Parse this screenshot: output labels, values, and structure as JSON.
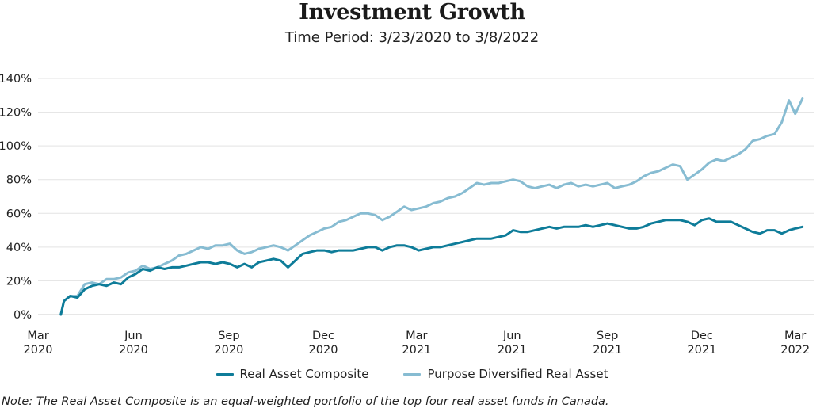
{
  "title": "Investment Growth",
  "subtitle": "Time Period: 3/23/2020 to 3/8/2022",
  "note": "Note: The Real Asset Composite is an equal-weighted portfolio of the top four real asset funds in Canada.",
  "colors": {
    "composite": "#0e7c99",
    "diversified": "#87bcd2",
    "grid": "#e3e3e3",
    "text": "#222222"
  },
  "chart_data": {
    "type": "line",
    "title": "Investment Growth",
    "subtitle": "Time Period: 3/23/2020 to 3/8/2022",
    "xlabel": "",
    "ylabel": "",
    "ylim": [
      0,
      140
    ],
    "yticks": [
      0,
      20,
      40,
      60,
      80,
      100,
      120,
      140
    ],
    "ytick_labels": [
      "0%",
      "20%",
      "40%",
      "60%",
      "80%",
      "100%",
      "120%",
      "140%"
    ],
    "xlim": [
      "2020-03-01",
      "2022-03-15"
    ],
    "xticks": [
      {
        "date": "2020-03-01",
        "month": "Mar",
        "year": "2020"
      },
      {
        "date": "2020-06-01",
        "month": "Jun",
        "year": "2020"
      },
      {
        "date": "2020-09-01",
        "month": "Sep",
        "year": "2020"
      },
      {
        "date": "2020-12-01",
        "month": "Dec",
        "year": "2020"
      },
      {
        "date": "2021-03-01",
        "month": "Mar",
        "year": "2021"
      },
      {
        "date": "2021-06-01",
        "month": "Jun",
        "year": "2021"
      },
      {
        "date": "2021-09-01",
        "month": "Sep",
        "year": "2021"
      },
      {
        "date": "2021-12-01",
        "month": "Dec",
        "year": "2021"
      },
      {
        "date": "2022-03-01",
        "month": "Mar",
        "year": "2022"
      }
    ],
    "grid": true,
    "legend_position": "bottom",
    "series": [
      {
        "name": "Real Asset Composite",
        "color": "#0e7c99",
        "points": [
          [
            "2020-03-23",
            0
          ],
          [
            "2020-03-26",
            8
          ],
          [
            "2020-04-01",
            11
          ],
          [
            "2020-04-08",
            10
          ],
          [
            "2020-04-15",
            15
          ],
          [
            "2020-04-22",
            17
          ],
          [
            "2020-04-29",
            18
          ],
          [
            "2020-05-06",
            17
          ],
          [
            "2020-05-13",
            19
          ],
          [
            "2020-05-20",
            18
          ],
          [
            "2020-05-27",
            22
          ],
          [
            "2020-06-03",
            24
          ],
          [
            "2020-06-10",
            27
          ],
          [
            "2020-06-17",
            26
          ],
          [
            "2020-06-24",
            28
          ],
          [
            "2020-07-01",
            27
          ],
          [
            "2020-07-08",
            28
          ],
          [
            "2020-07-15",
            28
          ],
          [
            "2020-07-22",
            29
          ],
          [
            "2020-07-29",
            30
          ],
          [
            "2020-08-05",
            31
          ],
          [
            "2020-08-12",
            31
          ],
          [
            "2020-08-19",
            30
          ],
          [
            "2020-08-26",
            31
          ],
          [
            "2020-09-02",
            30
          ],
          [
            "2020-09-09",
            28
          ],
          [
            "2020-09-16",
            30
          ],
          [
            "2020-09-23",
            28
          ],
          [
            "2020-09-30",
            31
          ],
          [
            "2020-10-07",
            32
          ],
          [
            "2020-10-14",
            33
          ],
          [
            "2020-10-21",
            32
          ],
          [
            "2020-10-28",
            28
          ],
          [
            "2020-11-04",
            32
          ],
          [
            "2020-11-11",
            36
          ],
          [
            "2020-11-18",
            37
          ],
          [
            "2020-11-25",
            38
          ],
          [
            "2020-12-02",
            38
          ],
          [
            "2020-12-09",
            37
          ],
          [
            "2020-12-16",
            38
          ],
          [
            "2020-12-23",
            38
          ],
          [
            "2020-12-30",
            38
          ],
          [
            "2021-01-06",
            39
          ],
          [
            "2021-01-13",
            40
          ],
          [
            "2021-01-20",
            40
          ],
          [
            "2021-01-27",
            38
          ],
          [
            "2021-02-03",
            40
          ],
          [
            "2021-02-10",
            41
          ],
          [
            "2021-02-17",
            41
          ],
          [
            "2021-02-24",
            40
          ],
          [
            "2021-03-03",
            38
          ],
          [
            "2021-03-10",
            39
          ],
          [
            "2021-03-17",
            40
          ],
          [
            "2021-03-24",
            40
          ],
          [
            "2021-03-31",
            41
          ],
          [
            "2021-04-07",
            42
          ],
          [
            "2021-04-14",
            43
          ],
          [
            "2021-04-21",
            44
          ],
          [
            "2021-04-28",
            45
          ],
          [
            "2021-05-05",
            45
          ],
          [
            "2021-05-12",
            45
          ],
          [
            "2021-05-19",
            46
          ],
          [
            "2021-05-26",
            47
          ],
          [
            "2021-06-02",
            50
          ],
          [
            "2021-06-09",
            49
          ],
          [
            "2021-06-16",
            49
          ],
          [
            "2021-06-23",
            50
          ],
          [
            "2021-06-30",
            51
          ],
          [
            "2021-07-07",
            52
          ],
          [
            "2021-07-14",
            51
          ],
          [
            "2021-07-21",
            52
          ],
          [
            "2021-07-28",
            52
          ],
          [
            "2021-08-04",
            52
          ],
          [
            "2021-08-11",
            53
          ],
          [
            "2021-08-18",
            52
          ],
          [
            "2021-08-25",
            53
          ],
          [
            "2021-09-01",
            54
          ],
          [
            "2021-09-08",
            53
          ],
          [
            "2021-09-15",
            52
          ],
          [
            "2021-09-22",
            51
          ],
          [
            "2021-09-29",
            51
          ],
          [
            "2021-10-06",
            52
          ],
          [
            "2021-10-13",
            54
          ],
          [
            "2021-10-20",
            55
          ],
          [
            "2021-10-27",
            56
          ],
          [
            "2021-11-03",
            56
          ],
          [
            "2021-11-10",
            56
          ],
          [
            "2021-11-17",
            55
          ],
          [
            "2021-11-24",
            53
          ],
          [
            "2021-12-01",
            56
          ],
          [
            "2021-12-08",
            57
          ],
          [
            "2021-12-15",
            55
          ],
          [
            "2021-12-22",
            55
          ],
          [
            "2021-12-29",
            55
          ],
          [
            "2022-01-05",
            53
          ],
          [
            "2022-01-12",
            51
          ],
          [
            "2022-01-19",
            49
          ],
          [
            "2022-01-26",
            48
          ],
          [
            "2022-02-02",
            50
          ],
          [
            "2022-02-09",
            50
          ],
          [
            "2022-02-16",
            48
          ],
          [
            "2022-02-23",
            50
          ],
          [
            "2022-03-01",
            51
          ],
          [
            "2022-03-08",
            52
          ]
        ]
      },
      {
        "name": "Purpose Diversified Real Asset",
        "color": "#87bcd2",
        "points": [
          [
            "2020-03-23",
            0
          ],
          [
            "2020-03-26",
            8
          ],
          [
            "2020-04-01",
            11
          ],
          [
            "2020-04-08",
            11
          ],
          [
            "2020-04-15",
            18
          ],
          [
            "2020-04-22",
            19
          ],
          [
            "2020-04-29",
            18
          ],
          [
            "2020-05-06",
            21
          ],
          [
            "2020-05-13",
            21
          ],
          [
            "2020-05-20",
            22
          ],
          [
            "2020-05-27",
            25
          ],
          [
            "2020-06-03",
            26
          ],
          [
            "2020-06-10",
            29
          ],
          [
            "2020-06-17",
            27
          ],
          [
            "2020-06-24",
            28
          ],
          [
            "2020-07-01",
            30
          ],
          [
            "2020-07-08",
            32
          ],
          [
            "2020-07-15",
            35
          ],
          [
            "2020-07-22",
            36
          ],
          [
            "2020-07-29",
            38
          ],
          [
            "2020-08-05",
            40
          ],
          [
            "2020-08-12",
            39
          ],
          [
            "2020-08-19",
            41
          ],
          [
            "2020-08-26",
            41
          ],
          [
            "2020-09-02",
            42
          ],
          [
            "2020-09-09",
            38
          ],
          [
            "2020-09-16",
            36
          ],
          [
            "2020-09-23",
            37
          ],
          [
            "2020-09-30",
            39
          ],
          [
            "2020-10-07",
            40
          ],
          [
            "2020-10-14",
            41
          ],
          [
            "2020-10-21",
            40
          ],
          [
            "2020-10-28",
            38
          ],
          [
            "2020-11-04",
            41
          ],
          [
            "2020-11-11",
            44
          ],
          [
            "2020-11-18",
            47
          ],
          [
            "2020-11-25",
            49
          ],
          [
            "2020-12-02",
            51
          ],
          [
            "2020-12-09",
            52
          ],
          [
            "2020-12-16",
            55
          ],
          [
            "2020-12-23",
            56
          ],
          [
            "2020-12-30",
            58
          ],
          [
            "2021-01-06",
            60
          ],
          [
            "2021-01-13",
            60
          ],
          [
            "2021-01-20",
            59
          ],
          [
            "2021-01-27",
            56
          ],
          [
            "2021-02-03",
            58
          ],
          [
            "2021-02-10",
            61
          ],
          [
            "2021-02-17",
            64
          ],
          [
            "2021-02-24",
            62
          ],
          [
            "2021-03-03",
            63
          ],
          [
            "2021-03-10",
            64
          ],
          [
            "2021-03-17",
            66
          ],
          [
            "2021-03-24",
            67
          ],
          [
            "2021-03-31",
            69
          ],
          [
            "2021-04-07",
            70
          ],
          [
            "2021-04-14",
            72
          ],
          [
            "2021-04-21",
            75
          ],
          [
            "2021-04-28",
            78
          ],
          [
            "2021-05-05",
            77
          ],
          [
            "2021-05-12",
            78
          ],
          [
            "2021-05-19",
            78
          ],
          [
            "2021-05-26",
            79
          ],
          [
            "2021-06-02",
            80
          ],
          [
            "2021-06-09",
            79
          ],
          [
            "2021-06-16",
            76
          ],
          [
            "2021-06-23",
            75
          ],
          [
            "2021-06-30",
            76
          ],
          [
            "2021-07-07",
            77
          ],
          [
            "2021-07-14",
            75
          ],
          [
            "2021-07-21",
            77
          ],
          [
            "2021-07-28",
            78
          ],
          [
            "2021-08-04",
            76
          ],
          [
            "2021-08-11",
            77
          ],
          [
            "2021-08-18",
            76
          ],
          [
            "2021-08-25",
            77
          ],
          [
            "2021-09-01",
            78
          ],
          [
            "2021-09-08",
            75
          ],
          [
            "2021-09-15",
            76
          ],
          [
            "2021-09-22",
            77
          ],
          [
            "2021-09-29",
            79
          ],
          [
            "2021-10-06",
            82
          ],
          [
            "2021-10-13",
            84
          ],
          [
            "2021-10-20",
            85
          ],
          [
            "2021-10-27",
            87
          ],
          [
            "2021-11-03",
            89
          ],
          [
            "2021-11-10",
            88
          ],
          [
            "2021-11-17",
            80
          ],
          [
            "2021-11-24",
            83
          ],
          [
            "2021-12-01",
            86
          ],
          [
            "2021-12-08",
            90
          ],
          [
            "2021-12-15",
            92
          ],
          [
            "2021-12-22",
            91
          ],
          [
            "2021-12-29",
            93
          ],
          [
            "2022-01-05",
            95
          ],
          [
            "2022-01-12",
            98
          ],
          [
            "2022-01-19",
            103
          ],
          [
            "2022-01-26",
            104
          ],
          [
            "2022-02-02",
            106
          ],
          [
            "2022-02-09",
            107
          ],
          [
            "2022-02-16",
            114
          ],
          [
            "2022-02-23",
            127
          ],
          [
            "2022-03-01",
            119
          ],
          [
            "2022-03-08",
            128
          ]
        ]
      }
    ]
  }
}
